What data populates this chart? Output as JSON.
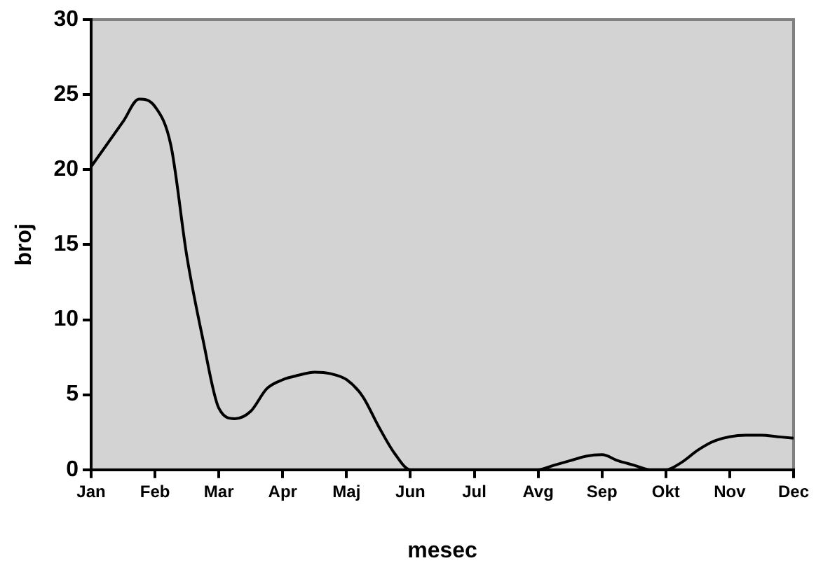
{
  "chart_data": {
    "type": "line",
    "xlabel": "mesec",
    "ylabel": "broj",
    "categories": [
      "Jan",
      null,
      null,
      null,
      "Feb",
      null,
      null,
      null,
      "Mar",
      null,
      null,
      null,
      "Apr",
      null,
      null,
      null,
      "Maj",
      null,
      null,
      null,
      "Jun",
      null,
      null,
      null,
      "Jul",
      null,
      null,
      null,
      "Avg",
      null,
      null,
      null,
      "Sep",
      null,
      null,
      null,
      "Okt",
      null,
      null,
      null,
      "Nov",
      null,
      null,
      null,
      "Dec"
    ],
    "series": [
      {
        "color": "#000000",
        "values": [
          20.2,
          21.7,
          23.2,
          24.7,
          24.2,
          21.6,
          14.2,
          8.7,
          4.1,
          3.4,
          3.9,
          5.4,
          6.0,
          6.3,
          6.5,
          6.4,
          6.0,
          4.9,
          2.9,
          1.1,
          0,
          0,
          0,
          0,
          0,
          0,
          0,
          0,
          0,
          0.3,
          0.6,
          0.9,
          1.0,
          0.6,
          0.3,
          0,
          0,
          0.5,
          1.3,
          1.9,
          2.2,
          2.3,
          2.3,
          2.2,
          2.1
        ]
      }
    ],
    "ylim": [
      0,
      30
    ],
    "yticks": [
      0,
      5,
      10,
      15,
      20,
      25,
      30
    ],
    "grid": false,
    "legend": false,
    "marker": "none",
    "line_style": "solid"
  }
}
